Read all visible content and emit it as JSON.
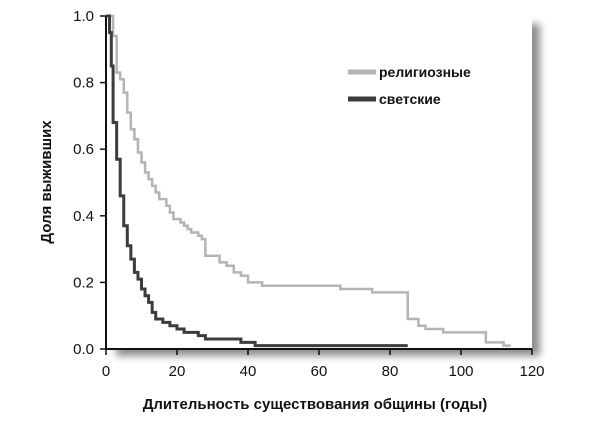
{
  "chart_data": {
    "type": "line",
    "step": true,
    "xlabel": "Длительность существования общины (годы)",
    "ylabel": "Доля выживших",
    "xlim": [
      0,
      120
    ],
    "ylim": [
      0,
      1.0
    ],
    "xticks": [
      0,
      20,
      40,
      60,
      80,
      100,
      120
    ],
    "yticks": [
      0.0,
      0.2,
      0.4,
      0.6,
      0.8,
      1.0
    ],
    "ytick_labels": [
      "0.0",
      "0.2",
      "0.4",
      "0.6",
      "0.8",
      "1.0"
    ],
    "grid": false,
    "legend_position": "top-right",
    "series": [
      {
        "name": "религиозные",
        "color": "#b4b4b4",
        "x": [
          0,
          1,
          2,
          3,
          4,
          5,
          6,
          7,
          8,
          9,
          10,
          11,
          12,
          13,
          14,
          15,
          16,
          17,
          18,
          19,
          20,
          21,
          22,
          23,
          24,
          25,
          26,
          27,
          28,
          30,
          32,
          34,
          36,
          38,
          40,
          42,
          44,
          50,
          60,
          66,
          75,
          78,
          80,
          84,
          85,
          86,
          88,
          90,
          92,
          95,
          100,
          105,
          107,
          110,
          112,
          114
        ],
        "y": [
          1.0,
          1.0,
          0.94,
          0.83,
          0.81,
          0.77,
          0.71,
          0.66,
          0.63,
          0.59,
          0.56,
          0.53,
          0.51,
          0.49,
          0.47,
          0.45,
          0.45,
          0.43,
          0.41,
          0.39,
          0.39,
          0.38,
          0.37,
          0.36,
          0.35,
          0.35,
          0.34,
          0.33,
          0.28,
          0.28,
          0.26,
          0.25,
          0.23,
          0.22,
          0.2,
          0.2,
          0.19,
          0.19,
          0.19,
          0.18,
          0.17,
          0.17,
          0.17,
          0.17,
          0.09,
          0.09,
          0.07,
          0.06,
          0.06,
          0.05,
          0.05,
          0.05,
          0.02,
          0.02,
          0.01,
          0.01
        ]
      },
      {
        "name": "светские",
        "color": "#3c3c3c",
        "x": [
          0,
          0.5,
          1,
          1.5,
          2,
          3,
          4,
          5,
          6,
          7,
          8,
          9,
          10,
          11,
          12,
          13,
          14,
          15,
          16,
          18,
          20,
          22,
          24,
          26,
          28,
          30,
          35,
          38,
          40,
          42,
          45,
          50,
          60,
          70,
          80,
          85
        ],
        "y": [
          1.0,
          1.0,
          0.95,
          0.85,
          0.68,
          0.57,
          0.46,
          0.37,
          0.31,
          0.27,
          0.23,
          0.21,
          0.18,
          0.16,
          0.14,
          0.11,
          0.09,
          0.09,
          0.08,
          0.07,
          0.06,
          0.05,
          0.05,
          0.04,
          0.03,
          0.03,
          0.03,
          0.02,
          0.02,
          0.01,
          0.01,
          0.01,
          0.01,
          0.01,
          0.01,
          0.01
        ]
      }
    ]
  }
}
